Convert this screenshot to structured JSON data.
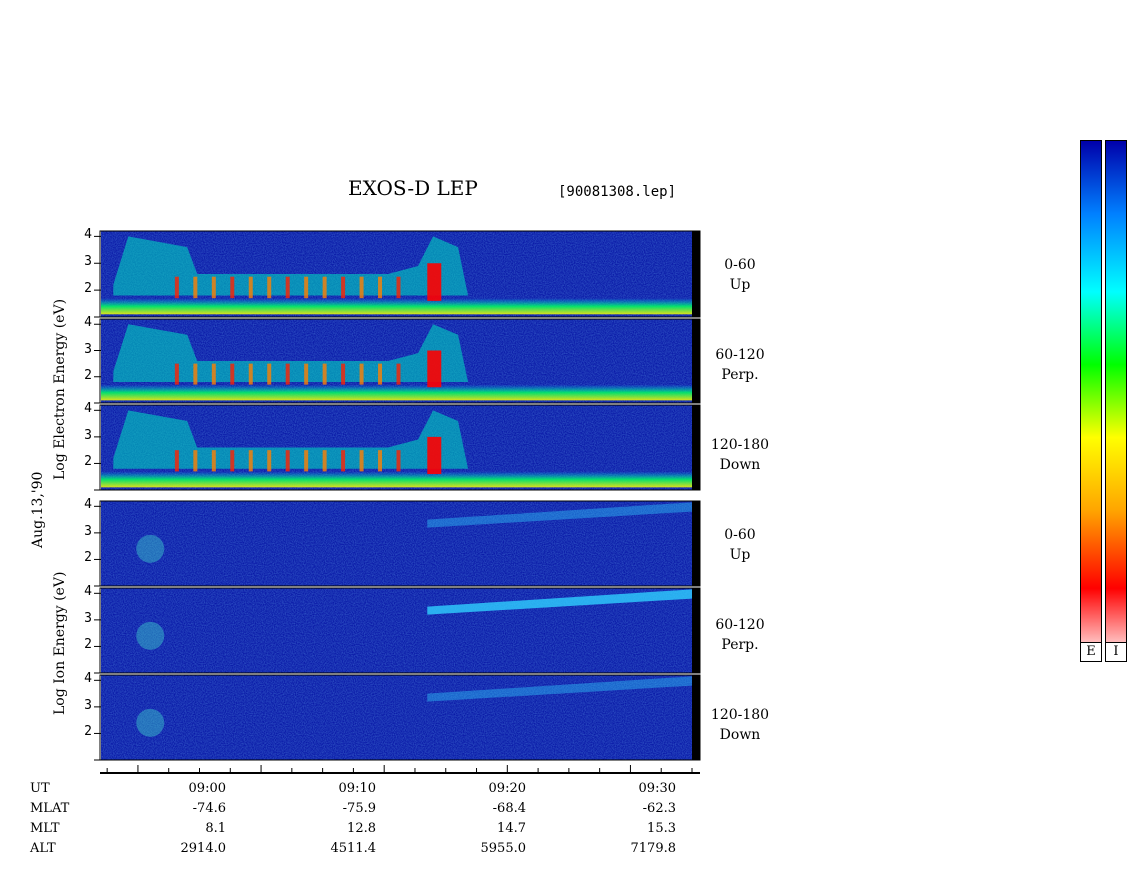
{
  "title": "EXOS-D LEP",
  "file": "[90081308.lep]",
  "date_label": "Aug.13,'90",
  "electron_ylabel": "Log  Electron  Energy (eV)",
  "ion_ylabel": "Log   Ion   Energy (eV)",
  "pitch_labels": [
    {
      "range": "0-60",
      "dir": "Up"
    },
    {
      "range": "60-120",
      "dir": "Perp."
    },
    {
      "range": "120-180",
      "dir": "Down"
    },
    {
      "range": "0-60",
      "dir": "Up"
    },
    {
      "range": "60-120",
      "dir": "Perp."
    },
    {
      "range": "120-180",
      "dir": "Down"
    }
  ],
  "y_ticks": [
    "4",
    "3",
    "2"
  ],
  "ephemeris": {
    "rows": [
      "UT",
      "MLAT",
      "MLT",
      "ALT"
    ],
    "columns": [
      {
        "UT": "09:00",
        "MLAT": "-74.6",
        "MLT": "8.1",
        "ALT": "2914.0"
      },
      {
        "UT": "09:10",
        "MLAT": "-75.9",
        "MLT": "12.8",
        "ALT": "4511.4"
      },
      {
        "UT": "09:20",
        "MLAT": "-68.4",
        "MLT": "14.7",
        "ALT": "5955.0"
      },
      {
        "UT": "09:30",
        "MLAT": "-62.3",
        "MLT": "15.3",
        "ALT": "7179.8"
      }
    ]
  },
  "colorbar_labels": [
    "E",
    "I"
  ],
  "colors": {
    "background": "#0a1aa8",
    "colormap": [
      "#ffffff",
      "#ff0000",
      "#ffa500",
      "#ffff00",
      "#00ff00",
      "#00ffff",
      "#0080ff",
      "#0000aa"
    ]
  },
  "chart_data": {
    "type": "heatmap",
    "title": "EXOS-D LEP",
    "xlabel": "UT",
    "x_ticks": [
      "09:00",
      "09:10",
      "09:20",
      "09:30"
    ],
    "ylim_log_eV": [
      1,
      4.2
    ],
    "panels": [
      {
        "species": "Electron",
        "pitch": "0-60",
        "dir": "Up"
      },
      {
        "species": "Electron",
        "pitch": "60-120",
        "dir": "Perp."
      },
      {
        "species": "Electron",
        "pitch": "120-180",
        "dir": "Down"
      },
      {
        "species": "Ion",
        "pitch": "0-60",
        "dir": "Up"
      },
      {
        "species": "Ion",
        "pitch": "60-120",
        "dir": "Perp."
      },
      {
        "species": "Ion",
        "pitch": "120-180",
        "dir": "Down"
      }
    ]
  }
}
